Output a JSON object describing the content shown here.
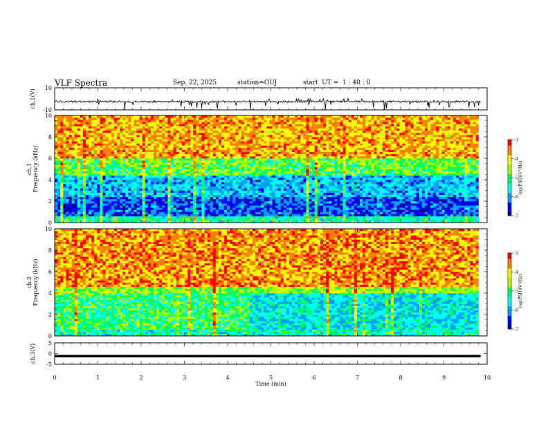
{
  "header": {
    "title": "VLF Spectra",
    "date": "Sep. 22, 2025",
    "station": "station=OUJ",
    "start": "start  UT =  1 : 40 : 0"
  },
  "colors": {
    "colormap": [
      "#00008c",
      "#0000ff",
      "#00a0ff",
      "#00ffff",
      "#00ff60",
      "#b0ff00",
      "#ffff00",
      "#ff8000",
      "#ff0000"
    ],
    "trace": "#000000"
  },
  "chart_data": [
    {
      "type": "line",
      "ylabel": "ch.1(V)",
      "ylim": [
        -10,
        10
      ],
      "yticks": [
        "10",
        "-10"
      ],
      "xlim": [
        0,
        10
      ],
      "series": [
        {
          "values_summary": "noisy trace near -2.5 V with intermittent negative spikes down to about -10 V",
          "level": -2.5
        }
      ]
    },
    {
      "type": "heatmap",
      "ylabel": "ch.1\nFrequency (kHz)",
      "ylim": [
        0,
        10
      ],
      "yticks": [
        "0",
        "2",
        "4",
        "6",
        "8",
        "10"
      ],
      "xlim": [
        0,
        10
      ],
      "data_extent_min": 9.8,
      "colorbar": {
        "label": "log(PSD)(V²/Hz)",
        "range": [
          -7,
          -3
        ],
        "ticks": [
          "-3",
          "-4",
          "-5",
          "-6",
          "-7"
        ]
      },
      "bands_khz": [
        {
          "from": 0,
          "to": 0.6,
          "logpsd": -5.2
        },
        {
          "from": 0.6,
          "to": 2.5,
          "logpsd": -6.3
        },
        {
          "from": 2.5,
          "to": 4.4,
          "logpsd": -5.8
        },
        {
          "from": 4.4,
          "to": 6.0,
          "logpsd": -4.8
        },
        {
          "from": 6.0,
          "to": 10,
          "logpsd": -3.7
        }
      ]
    },
    {
      "type": "heatmap",
      "ylabel": "ch.2\nFrequency (kHz)",
      "ylim": [
        0,
        10
      ],
      "yticks": [
        "0",
        "2",
        "4",
        "6",
        "8",
        "10"
      ],
      "xlim": [
        0,
        10
      ],
      "data_extent_min": 9.8,
      "colorbar": {
        "label": "log(PSD)(V²/Hz)",
        "range": [
          -7,
          -3
        ],
        "ticks": [
          "-3",
          "-4",
          "-5",
          "-6",
          "-7"
        ]
      },
      "bands_khz": [
        {
          "from": 0,
          "to": 0.6,
          "logpsd": -5.3
        },
        {
          "from": 0.6,
          "to": 4.0,
          "logpsd": -5.6
        },
        {
          "from": 4.0,
          "to": 4.6,
          "logpsd": -4.6
        },
        {
          "from": 4.6,
          "to": 10,
          "logpsd": -3.6
        }
      ],
      "transition_min": 4.5
    },
    {
      "type": "line",
      "ylabel": "ch.3(V)",
      "ylim": [
        -5,
        5
      ],
      "yticks": [
        "5",
        "0",
        "-5"
      ],
      "xlim": [
        0,
        10
      ],
      "series": [
        {
          "values_summary": "flat thick trace near -1.2 V",
          "level": -1.2
        }
      ]
    }
  ],
  "xaxis": {
    "label": "Time  (min)",
    "ticks": [
      "0",
      "1",
      "2",
      "3",
      "4",
      "5",
      "6",
      "7",
      "8",
      "9",
      "10"
    ]
  }
}
